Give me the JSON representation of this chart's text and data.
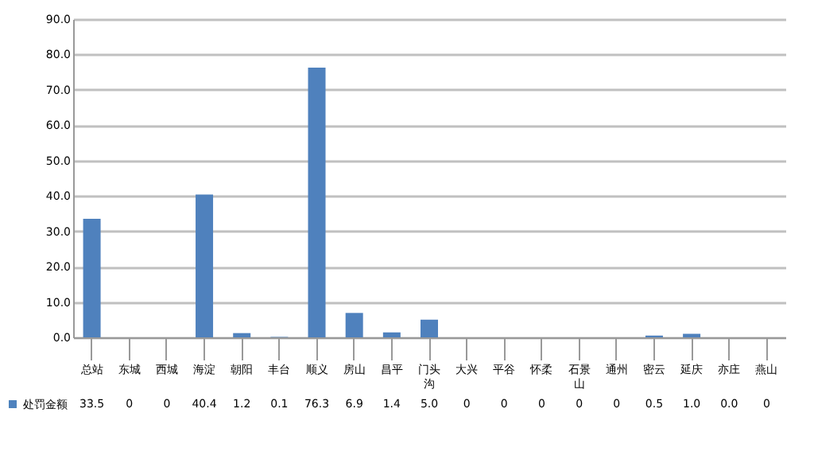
{
  "chart_data": {
    "type": "bar",
    "categories": [
      "总站",
      "东城",
      "西城",
      "海淀",
      "朝阳",
      "丰台",
      "顺义",
      "房山",
      "昌平",
      "门头沟",
      "大兴",
      "平谷",
      "怀柔",
      "石景山",
      "通州",
      "密云",
      "延庆",
      "亦庄",
      "燕山"
    ],
    "series": [
      {
        "name": "处罚金额",
        "color": "#4f81bd",
        "values": [
          33.5,
          0,
          0,
          40.4,
          1.2,
          0.1,
          76.3,
          6.9,
          1.4,
          5.0,
          0,
          0,
          0,
          0,
          0,
          0.5,
          1.0,
          0.0,
          0
        ],
        "value_labels": [
          "33.5",
          "0",
          "0",
          "40.4",
          "1.2",
          "0.1",
          "76.3",
          "6.9",
          "1.4",
          "5.0",
          "0",
          "0",
          "0",
          "0",
          "0",
          "0.5",
          "1.0",
          "0.0",
          "0"
        ]
      }
    ],
    "ylim": [
      0,
      90
    ],
    "yticks": [
      {
        "value": 0,
        "label": "0.0"
      },
      {
        "value": 10,
        "label": "10.0"
      },
      {
        "value": 20,
        "label": "20.0"
      },
      {
        "value": 30,
        "label": "30.0"
      },
      {
        "value": 40,
        "label": "40.0"
      },
      {
        "value": 50,
        "label": "50.0"
      },
      {
        "value": 60,
        "label": "60.0"
      },
      {
        "value": 70,
        "label": "70.0"
      },
      {
        "value": 80,
        "label": "80.0"
      },
      {
        "value": 90,
        "label": "90.0"
      }
    ],
    "grid": "y",
    "legend": "bottom left"
  }
}
